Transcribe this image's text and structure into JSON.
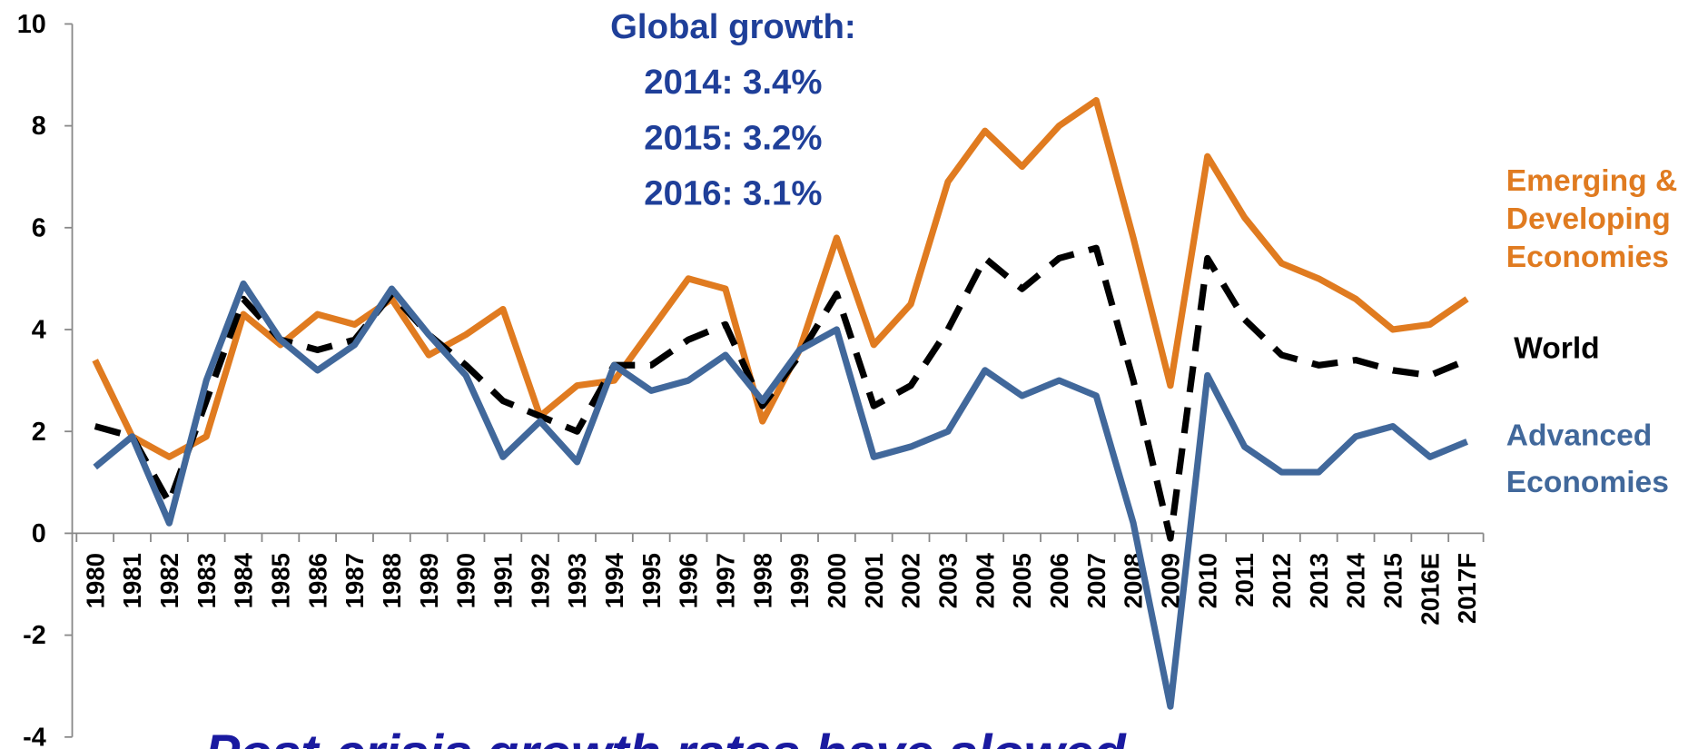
{
  "chart_data": {
    "type": "line",
    "annotations": [
      "Global growth:",
      "2014: 3.4%",
      "2015: 3.2%",
      "2016: 3.1%"
    ],
    "caption": "Post-crisis growth rates have slowed",
    "categories": [
      "1980",
      "1981",
      "1982",
      "1983",
      "1984",
      "1985",
      "1986",
      "1987",
      "1988",
      "1989",
      "1990",
      "1991",
      "1992",
      "1993",
      "1994",
      "1995",
      "1996",
      "1997",
      "1998",
      "1999",
      "2000",
      "2001",
      "2002",
      "2003",
      "2004",
      "2005",
      "2006",
      "2007",
      "2008",
      "2009",
      "2010",
      "2011",
      "2012",
      "2013",
      "2014",
      "2015",
      "2016E",
      "2017F"
    ],
    "series": [
      {
        "name": "Emerging & Developing Economies",
        "color": "#e07b20",
        "dashed": false,
        "values": [
          3.4,
          1.9,
          1.5,
          1.9,
          4.3,
          3.7,
          4.3,
          4.1,
          4.6,
          3.5,
          3.9,
          4.4,
          2.3,
          2.9,
          3.0,
          4.0,
          5.0,
          4.8,
          2.2,
          3.6,
          5.8,
          3.7,
          4.5,
          6.9,
          7.9,
          7.2,
          8.0,
          8.5,
          5.8,
          2.9,
          7.4,
          6.2,
          5.3,
          5.0,
          4.6,
          4.0,
          4.1,
          4.6
        ]
      },
      {
        "name": "World",
        "color": "#000000",
        "dashed": true,
        "values": [
          2.1,
          1.9,
          0.6,
          2.6,
          4.6,
          3.8,
          3.6,
          3.8,
          4.7,
          3.9,
          3.3,
          2.6,
          2.3,
          2.0,
          3.3,
          3.3,
          3.8,
          4.1,
          2.5,
          3.5,
          4.7,
          2.5,
          2.9,
          4.0,
          5.4,
          4.8,
          5.4,
          5.6,
          3.0,
          -0.1,
          5.4,
          4.2,
          3.5,
          3.3,
          3.4,
          3.2,
          3.1,
          3.4
        ]
      },
      {
        "name": "Advanced Economies",
        "color": "#41689b",
        "dashed": false,
        "values": [
          1.3,
          1.9,
          0.2,
          3.0,
          4.9,
          3.8,
          3.2,
          3.7,
          4.8,
          3.9,
          3.1,
          1.5,
          2.2,
          1.4,
          3.3,
          2.8,
          3.0,
          3.5,
          2.6,
          3.6,
          4.0,
          1.5,
          1.7,
          2.0,
          3.2,
          2.7,
          3.0,
          2.7,
          0.2,
          -3.4,
          3.1,
          1.7,
          1.2,
          1.2,
          1.9,
          2.1,
          1.5,
          1.8
        ]
      }
    ],
    "ylim": [
      -4,
      10
    ],
    "yticks": [
      -4,
      -2,
      0,
      2,
      4,
      6,
      8,
      10
    ],
    "annotation_color": "#1f3f99",
    "caption_color": "#1a1aa0"
  }
}
